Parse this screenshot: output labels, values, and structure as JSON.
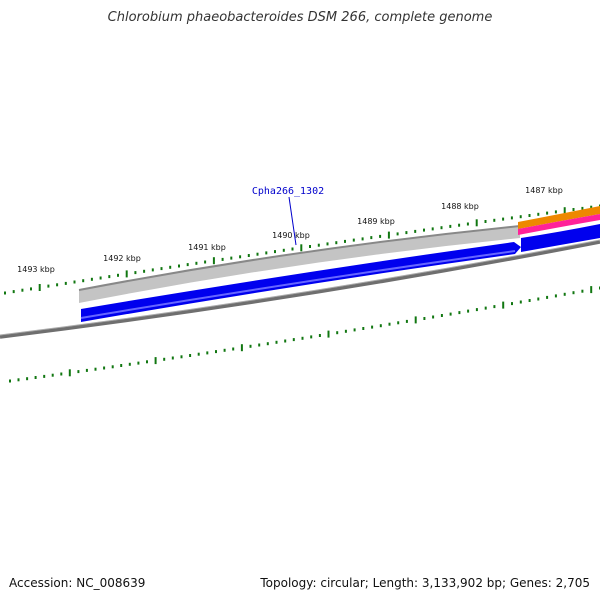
{
  "title": "Chlorobium phaeobacteroides DSM 266, complete genome",
  "ticks": [
    {
      "label": "1493 kbp"
    },
    {
      "label": "1492 kbp"
    },
    {
      "label": "1491 kbp"
    },
    {
      "label": "1490 kbp"
    },
    {
      "label": "1489 kbp"
    },
    {
      "label": "1488 kbp"
    },
    {
      "label": "1487 kbp"
    }
  ],
  "gene_label": "Cpha266_1302",
  "colors": {
    "gene_blue": "#0000ee",
    "gene_gray": "#bbbbbb",
    "backbone": "#777777",
    "tick_green": "#117711",
    "gene_orange": "#ee8800",
    "gene_pink": "#ff33aa",
    "label_blue": "#0000cc"
  },
  "footer": {
    "accession": "Accession: NC_008639",
    "summary": "Topology: circular; Length: 3,133,902 bp; Genes: 2,705"
  }
}
